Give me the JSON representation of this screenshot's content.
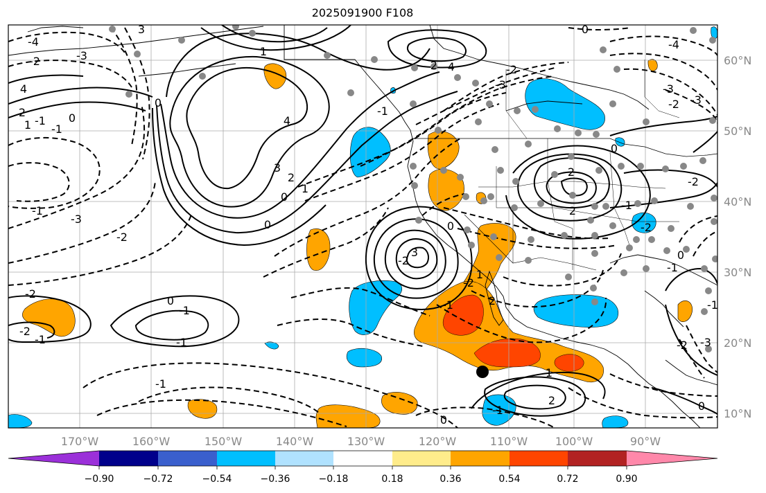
{
  "title": "2025091900 F108",
  "lon_labels": [
    "170°W",
    "160°W",
    "150°W",
    "140°W",
    "130°W",
    "120°W",
    "110°W",
    "100°W",
    "90°W"
  ],
  "lat_labels": [
    "60°N",
    "50°N",
    "40°N",
    "30°N",
    "20°N",
    "10°N"
  ],
  "colorbar": {
    "colors": [
      "#9b30d9",
      "#00008b",
      "#3a5fcd",
      "#00bfff",
      "#b0e2ff",
      "#ffffff",
      "#ffec8b",
      "#ffa500",
      "#ff4500",
      "#b22222",
      "#ff88aa"
    ],
    "ticks": [
      "−0.90",
      "−0.72",
      "−0.54",
      "−0.36",
      "−0.18",
      "0.18",
      "0.36",
      "0.54",
      "0.72",
      "0.90"
    ]
  },
  "contour_labels": [
    "4",
    "3",
    "2",
    "0",
    "1",
    "-4",
    "-3",
    "-2",
    "-1",
    "-1",
    "2",
    "0",
    "1",
    "4",
    "3",
    "0",
    "-1",
    "-2",
    "-3",
    "-4",
    "-3",
    "-2",
    "2",
    "-1",
    "1",
    "2",
    "2",
    "3",
    "-2",
    "0",
    "-1",
    "-2",
    "2",
    "1",
    "0",
    "-1",
    "-2",
    "-1",
    "-2",
    "0",
    "-1",
    "-1",
    "-1",
    "0",
    "1",
    "2",
    "-4",
    "-3",
    "-2",
    "-3",
    "-2",
    "-2",
    "0",
    "-1",
    "0",
    "-1",
    "-1",
    "-3",
    "-2",
    "0",
    "0"
  ],
  "legend_colors": {
    "negative_shade": "#00bfff",
    "positive_shade": "#ffa500",
    "strong_positive_shade": "#ff4500",
    "station_dot": "#888888",
    "grid": "#aaaaaa"
  }
}
